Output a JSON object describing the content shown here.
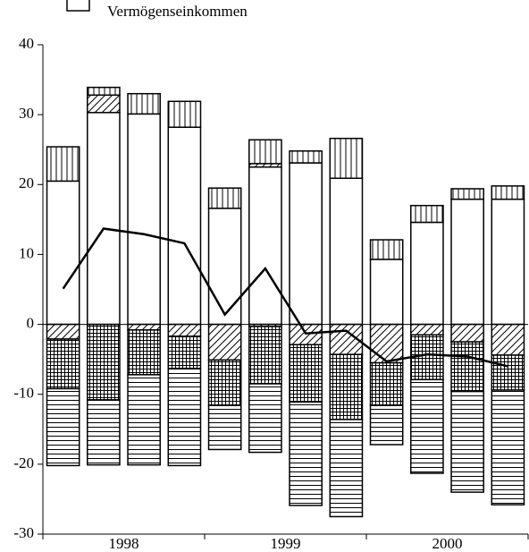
{
  "chart_data": {
    "type": "bar",
    "legend_label": "Vermögenseinkommen",
    "categories": [
      null,
      null,
      null,
      null,
      null,
      null,
      null,
      null,
      null,
      null,
      null,
      null
    ],
    "groups": [
      "1998",
      "1999",
      "2000"
    ],
    "ylim": [
      -30,
      40
    ],
    "yticks": [
      -30,
      -20,
      -10,
      0,
      10,
      20,
      30,
      40
    ],
    "series": [
      {
        "name": "Vermögenseinkommen",
        "pattern": "none",
        "color": "#ffffff",
        "values": [
          20.5,
          30.3,
          30.1,
          28.2,
          16.6,
          22.5,
          23.1,
          20.9,
          9.3,
          14.6,
          17.9,
          17.9
        ]
      },
      {
        "pattern": "diagonal",
        "color": "#000000",
        "values": [
          0,
          2.5,
          0,
          0,
          0,
          0.5,
          0,
          0,
          0,
          0,
          0,
          0
        ]
      },
      {
        "pattern": "vertical",
        "color": "#000000",
        "values": [
          4.9,
          1.1,
          2.9,
          3.7,
          2.9,
          3.4,
          1.7,
          5.7,
          2.8,
          2.4,
          1.5,
          1.9
        ]
      },
      {
        "pattern": "diagonal",
        "color": "#000000",
        "values": [
          -2.1,
          0,
          -0.8,
          -1.7,
          -5.1,
          -0.3,
          -2.9,
          -4.3,
          -5.5,
          -1.5,
          -2.5,
          -4.4
        ]
      },
      {
        "pattern": "crosshatch",
        "color": "#000000",
        "values": [
          -7.1,
          -10.8,
          -6.4,
          -4.6,
          -6.5,
          -8.2,
          -8.2,
          -9.3,
          -6.1,
          -6.4,
          -7.1,
          -5.0
        ]
      },
      {
        "pattern": "horizontal",
        "color": "#000000",
        "values": [
          -11.0,
          -9.3,
          -12.9,
          -13.9,
          -6.3,
          -9.8,
          -14.8,
          -13.9,
          -5.6,
          -13.4,
          -14.4,
          -16.4
        ]
      }
    ],
    "line": {
      "color": "#000000",
      "values": [
        5.1,
        13.7,
        12.9,
        11.6,
        1.4,
        8.0,
        -1.3,
        -0.9,
        -5.3,
        -4.3,
        -4.6,
        -6.0
      ]
    }
  }
}
